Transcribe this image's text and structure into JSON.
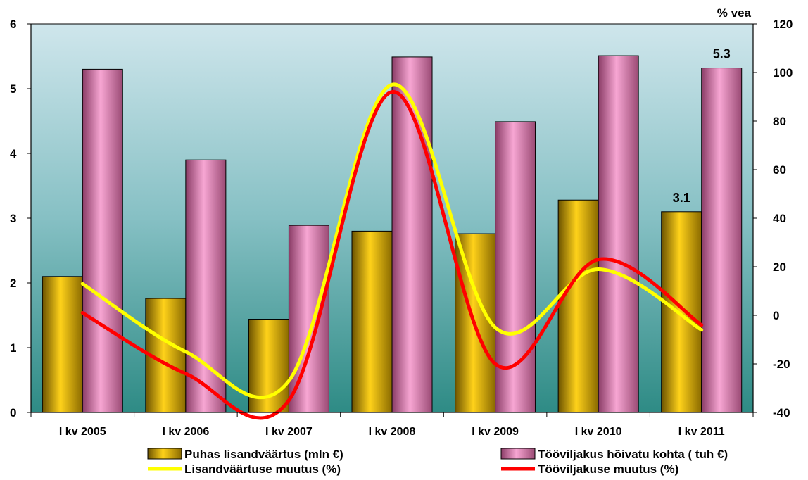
{
  "chart_data": {
    "type": "bar",
    "categories": [
      "I kv 2005",
      "I kv 2006",
      "I kv 2007",
      "I kv 2008",
      "I kv 2009",
      "I kv 2010",
      "I kv 2011"
    ],
    "series": [
      {
        "name": "Puhas lisandväärtus (mln €)",
        "type": "bar",
        "axis": "left",
        "color": "#E8B800",
        "values": [
          2.1,
          1.76,
          1.44,
          2.8,
          2.76,
          3.28,
          3.1
        ]
      },
      {
        "name": "Tööviljakus hõivatu kohta ( tuh €)",
        "type": "bar",
        "axis": "left",
        "color": "#F28CC4",
        "values": [
          5.3,
          3.9,
          2.89,
          5.49,
          4.49,
          5.51,
          5.32
        ]
      },
      {
        "name": "Lisandväärtuse muutus (%)",
        "type": "line",
        "axis": "right",
        "color": "#FFFF00",
        "values": [
          13,
          -15,
          -27,
          95,
          -5,
          19,
          -6
        ]
      },
      {
        "name": "Tööviljakuse muutus (%)",
        "type": "line",
        "axis": "right",
        "color": "#FF0000",
        "values": [
          1,
          -24,
          -35,
          92,
          -20,
          23,
          -4
        ]
      }
    ],
    "data_labels": [
      {
        "series": 0,
        "index": 6,
        "text": "3.1"
      },
      {
        "series": 1,
        "index": 6,
        "text": "5.3"
      }
    ],
    "left_axis": {
      "ylim": [
        0,
        6
      ],
      "ticks": [
        "0",
        "1",
        "2",
        "3",
        "4",
        "5",
        "6"
      ]
    },
    "right_axis": {
      "ylim": [
        -40,
        120
      ],
      "ticks": [
        "-40",
        "-20",
        "0",
        "20",
        "40",
        "60",
        "80",
        "100",
        "120"
      ],
      "unit_label": "% vea"
    },
    "grid": false,
    "legend_position": "bottom"
  }
}
